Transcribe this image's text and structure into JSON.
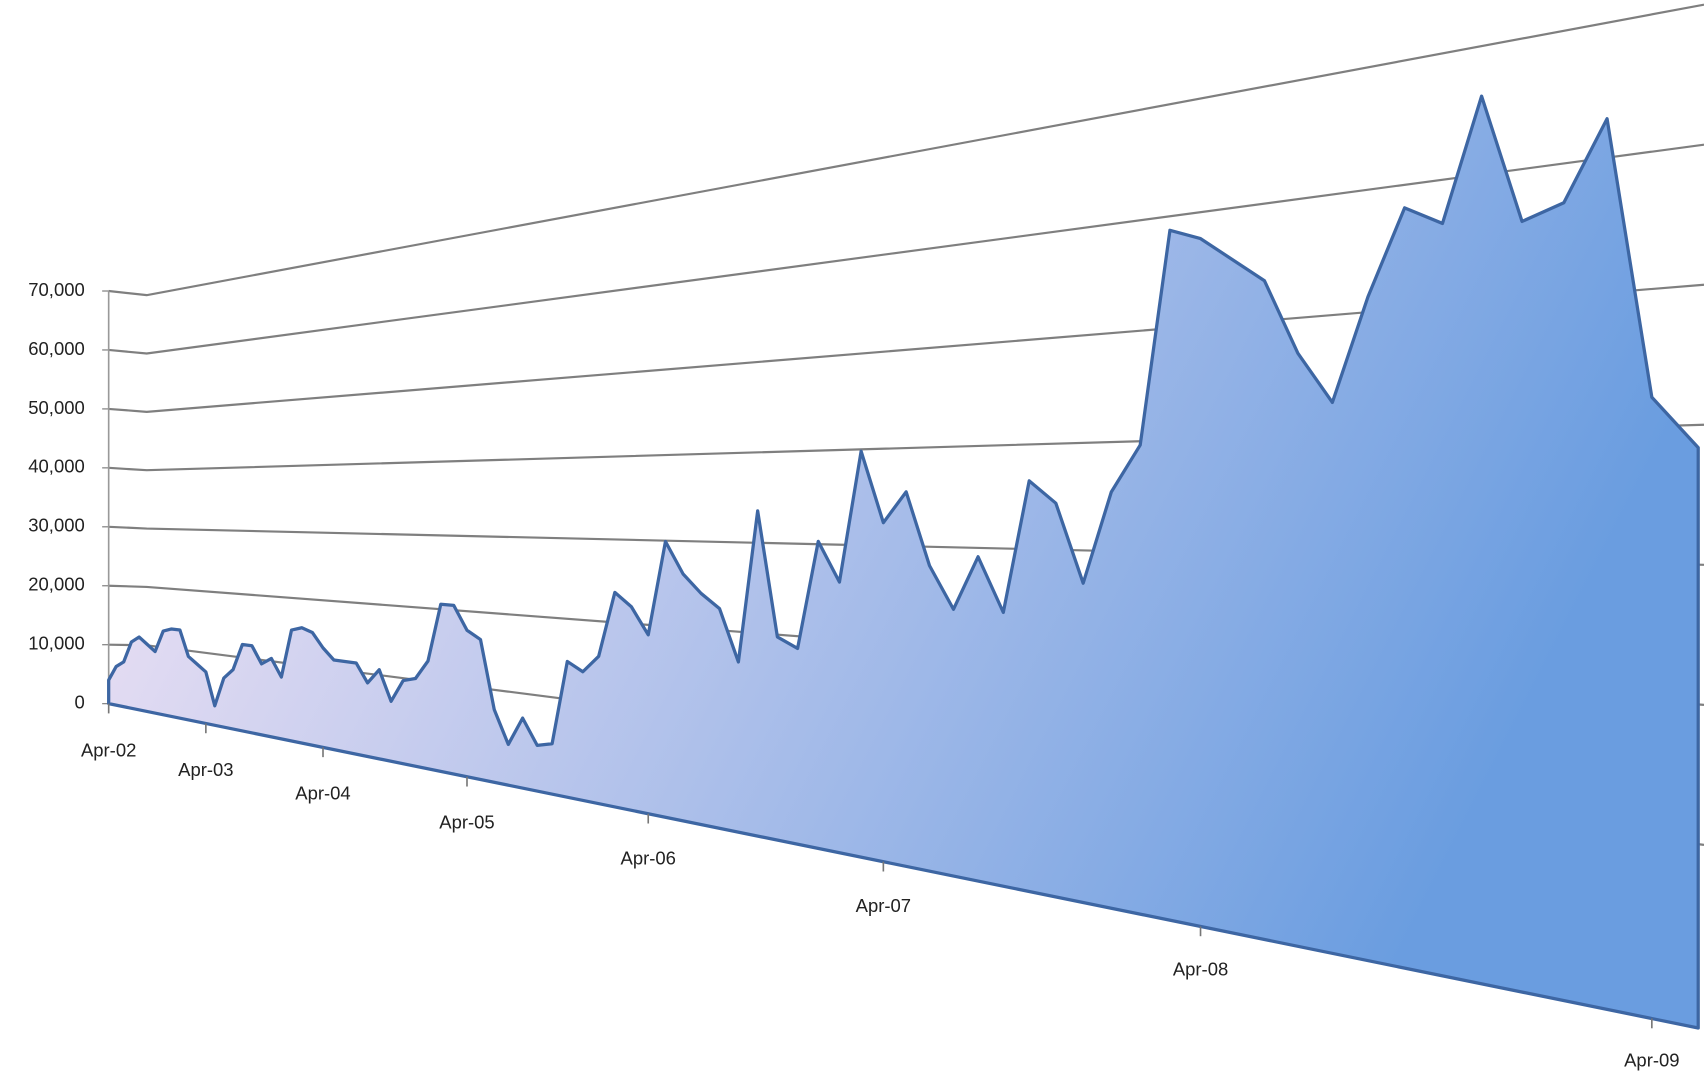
{
  "chart_data": {
    "type": "area",
    "categories": [
      "Apr-02",
      null,
      null,
      null,
      null,
      null,
      null,
      null,
      null,
      null,
      null,
      null,
      "Apr-03",
      null,
      null,
      null,
      null,
      null,
      null,
      null,
      null,
      null,
      null,
      null,
      "Apr-04",
      null,
      null,
      null,
      null,
      null,
      null,
      null,
      null,
      null,
      null,
      null,
      "Apr-05",
      null,
      null,
      null,
      null,
      null,
      null,
      null,
      null,
      null,
      null,
      null,
      "Apr-06",
      null,
      null,
      null,
      null,
      null,
      null,
      null,
      null,
      null,
      null,
      null,
      "Apr-07",
      null,
      null,
      null,
      null,
      null,
      null,
      null,
      null,
      null,
      null,
      null,
      "Apr-08",
      null,
      null,
      null,
      null,
      null,
      null,
      null,
      null,
      null,
      null,
      null,
      "Apr-09",
      null
    ],
    "values": [
      4000,
      6500,
      7500,
      11000,
      12000,
      11000,
      10000,
      13500,
      14000,
      14000,
      10000,
      9000,
      8000,
      3000,
      7500,
      9000,
      13000,
      13000,
      10500,
      11500,
      9000,
      16000,
      16500,
      16000,
      14000,
      12500,
      12500,
      12500,
      10000,
      12000,
      8000,
      11000,
      11500,
      14000,
      21500,
      21500,
      18500,
      17500,
      9000,
      5000,
      8500,
      5500,
      6000,
      16000,
      15000,
      17000,
      24500,
      23000,
      20000,
      30500,
      27000,
      25000,
      23500,
      18000,
      34000,
      21000,
      20000,
      31000,
      27000,
      40000,
      33000,
      36000,
      29000,
      25000,
      30000,
      25000,
      37000,
      35000,
      28000,
      36000,
      40000,
      58000,
      57000,
      55000,
      53000,
      47000,
      43000,
      51000,
      57500,
      56000,
      65000,
      55500,
      56500,
      62000,
      42500,
      39000
    ],
    "color": "#6a9de0",
    "gradient_start": "#fbe8f6",
    "edge_color": "#3d66a3",
    "ylim": [
      0,
      70000
    ],
    "yticks": [
      0,
      {
        "value": 10000,
        "label": "10,000"
      },
      {
        "value": 20000,
        "label": "20,000"
      },
      {
        "value": 30000,
        "label": "30,000"
      },
      {
        "value": 40000,
        "label": "40,000"
      },
      {
        "value": 50000,
        "label": "50,000"
      },
      {
        "value": 60000,
        "label": "60,000"
      },
      {
        "value": 70000,
        "label": "70,000"
      }
    ],
    "grid": true,
    "grid_color": "#7f7f7f"
  }
}
